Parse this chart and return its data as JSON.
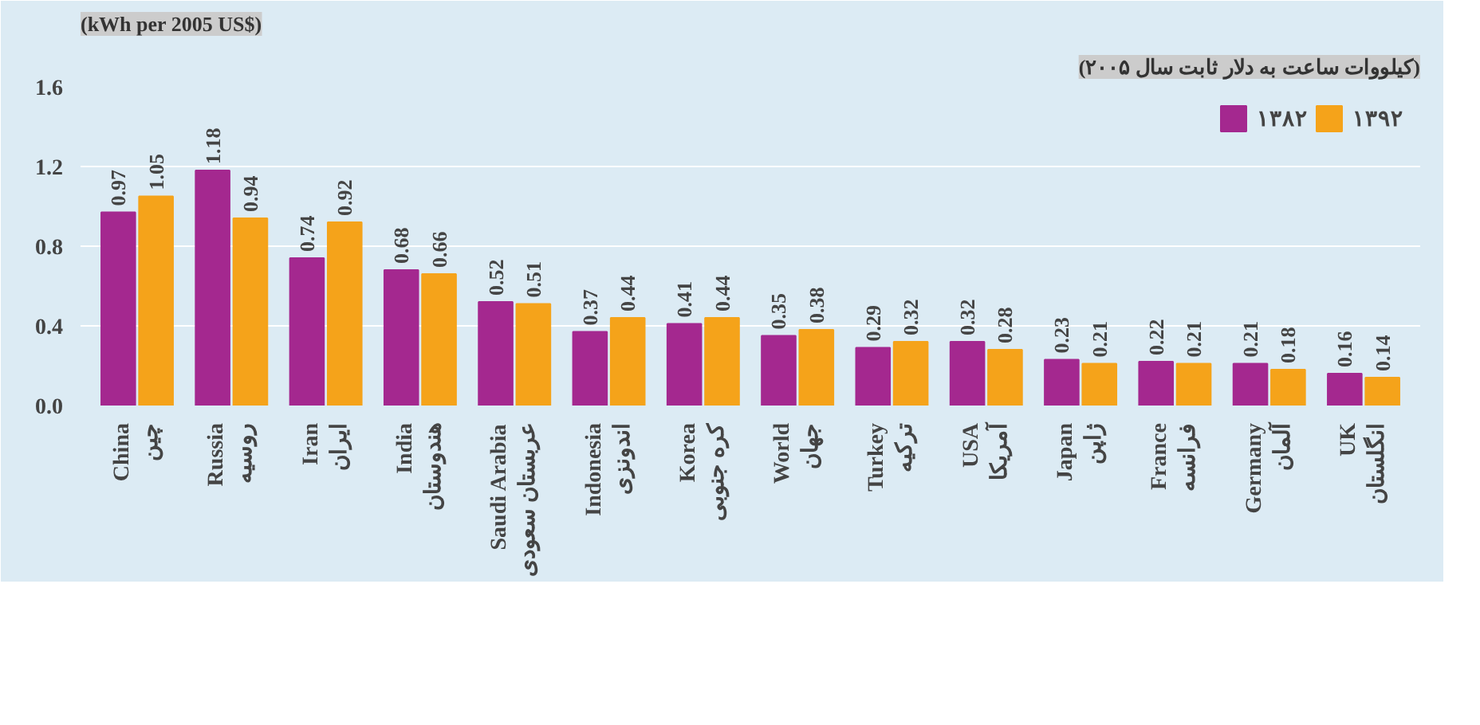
{
  "chart_data": {
    "type": "bar",
    "title": "(kWh per 2005 US$)",
    "subtitle": "(کیلووات ساعت به دلار ثابت سال ۲۰۰۵)",
    "categories": [
      "China\nچین",
      "Russia\nروسیه",
      "Iran\nایران",
      "India\nهندوستان",
      "Saudi Arabia\nعربستان سعودی",
      "Indonesia\nاندونزی",
      "Korea\nکره جنوبی",
      "World\nجهان",
      "Turkey\nترکیه",
      "USA\nآمریکا",
      "Japan\nژاپن",
      "France\nفرانسه",
      "Germany\nآلمان",
      "UK\nانگلستان"
    ],
    "series": [
      {
        "name": "۱۳۸۲",
        "color": "#a4288f",
        "values": [
          0.97,
          1.18,
          0.74,
          0.68,
          0.52,
          0.37,
          0.41,
          0.35,
          0.29,
          0.32,
          0.23,
          0.22,
          0.21,
          0.16
        ]
      },
      {
        "name": "۱۳۹۲",
        "color": "#f5a31a",
        "values": [
          1.05,
          0.94,
          0.92,
          0.66,
          0.51,
          0.44,
          0.44,
          0.38,
          0.32,
          0.28,
          0.21,
          0.21,
          0.18,
          0.14
        ]
      }
    ],
    "ylim": [
      0,
      1.6
    ],
    "yticks": [
      {
        "value": 0,
        "label": "0.0"
      },
      {
        "value": 0.4,
        "label": "0.4"
      },
      {
        "value": 0.8,
        "label": "0.8"
      },
      {
        "value": 1.2,
        "label": "1.2"
      },
      {
        "value": 1.6,
        "label": "1.6"
      }
    ],
    "grid": "y",
    "legend": "top right",
    "data_labels": true
  }
}
